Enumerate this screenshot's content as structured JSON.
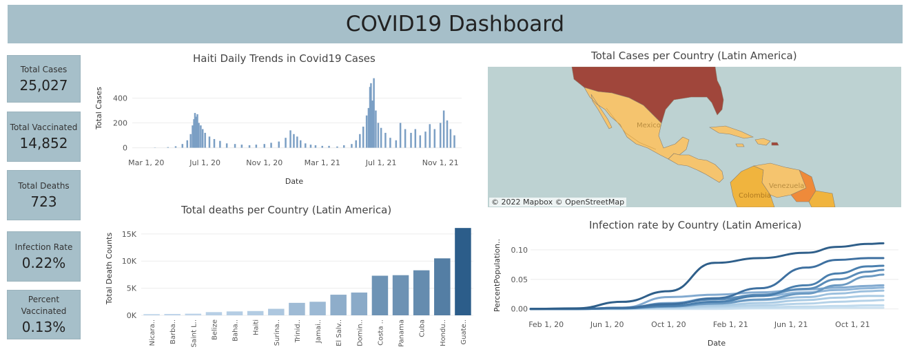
{
  "header": {
    "title": "COVID19 Dashboard"
  },
  "kpis": [
    {
      "label": "Total Cases",
      "value": "25,027"
    },
    {
      "label": "Total Vaccinated",
      "value": "14,852"
    },
    {
      "label": "Total Deaths",
      "value": "723"
    },
    {
      "label": "Infection Rate",
      "value": "0.22%"
    },
    {
      "label_line1": "Percent",
      "label_line2": "Vaccinated",
      "value": "0.13%"
    }
  ],
  "map": {
    "title": "Total Cases per Country (Latin America)",
    "credit": "© 2022 Mapbox © OpenStreetMap",
    "labels": {
      "mexico": "Mexico",
      "colombia": "Colombia",
      "venezuela": "Venezuela"
    },
    "colors": {
      "water": "#bdd2d2",
      "usa": "#a0463b",
      "mexico": "#f5c46e",
      "central": "#f5c46e",
      "colombia": "#f0b43e",
      "venezuela": "#f5c46e",
      "guyana": "#ef8a3a"
    }
  },
  "chart_data": [
    {
      "type": "bar",
      "title": "Haiti Daily Trends in Covid19 Cases",
      "xlabel": "Date",
      "ylabel": "Total Cases",
      "x_ticks": [
        "Mar 1, 20",
        "Jul 1, 20",
        "Nov 1, 20",
        "Mar 1, 21",
        "Jul 1, 21",
        "Nov 1, 21"
      ],
      "y_ticks": [
        0,
        200,
        400
      ],
      "ylim": [
        -30,
        580
      ],
      "color": "#7b9fc4",
      "grid": true,
      "x": [
        "2020-03-19",
        "2020-04-15",
        "2020-05-01",
        "2020-05-15",
        "2020-05-25",
        "2020-06-01",
        "2020-06-05",
        "2020-06-08",
        "2020-06-10",
        "2020-06-12",
        "2020-06-15",
        "2020-06-18",
        "2020-06-22",
        "2020-06-26",
        "2020-07-01",
        "2020-07-10",
        "2020-07-20",
        "2020-08-01",
        "2020-08-15",
        "2020-09-01",
        "2020-09-15",
        "2020-10-01",
        "2020-10-15",
        "2020-11-01",
        "2020-11-15",
        "2020-12-01",
        "2020-12-15",
        "2020-12-25",
        "2021-01-01",
        "2021-01-08",
        "2021-01-15",
        "2021-01-25",
        "2021-02-05",
        "2021-02-15",
        "2021-03-01",
        "2021-03-15",
        "2021-04-01",
        "2021-04-15",
        "2021-05-01",
        "2021-05-10",
        "2021-05-18",
        "2021-05-25",
        "2021-06-01",
        "2021-06-05",
        "2021-06-08",
        "2021-06-10",
        "2021-06-13",
        "2021-06-16",
        "2021-06-20",
        "2021-06-25",
        "2021-07-01",
        "2021-07-10",
        "2021-07-20",
        "2021-08-01",
        "2021-08-10",
        "2021-08-20",
        "2021-09-01",
        "2021-09-10",
        "2021-09-20",
        "2021-10-01",
        "2021-10-10",
        "2021-10-20",
        "2021-11-01",
        "2021-11-08",
        "2021-11-15",
        "2021-11-22",
        "2021-11-30"
      ],
      "values": [
        2,
        5,
        12,
        30,
        60,
        110,
        180,
        230,
        280,
        250,
        270,
        200,
        180,
        150,
        120,
        90,
        70,
        55,
        35,
        30,
        25,
        20,
        25,
        30,
        40,
        50,
        80,
        140,
        110,
        90,
        60,
        35,
        25,
        20,
        15,
        15,
        10,
        20,
        30,
        60,
        110,
        170,
        260,
        320,
        490,
        520,
        380,
        560,
        300,
        200,
        160,
        120,
        80,
        60,
        200,
        150,
        120,
        150,
        100,
        130,
        190,
        150,
        200,
        300,
        220,
        150,
        100
      ]
    },
    {
      "type": "bar",
      "title": "Total deaths per Country (Latin America)",
      "xlabel": "",
      "ylabel": "Total Death Counts",
      "categories": [
        "Nicara..",
        "Barba..",
        "Saint L..",
        "Belize",
        "Baha..",
        "Haiti",
        "Surina..",
        "Trinid..",
        "Jamai..",
        "El Salv..",
        "Domin..",
        "Costa ..",
        "Panama",
        "Cuba",
        "Hondu..",
        "Guate.."
      ],
      "values": [
        220,
        250,
        300,
        590,
        720,
        790,
        1200,
        2300,
        2500,
        3800,
        4200,
        7300,
        7400,
        8300,
        10500,
        16100
      ],
      "y_ticks": [
        "0K",
        "5K",
        "10K",
        "15K"
      ],
      "ylim": [
        0,
        16500
      ],
      "color_low": "#c6dbef",
      "color_high": "#2c5d8a"
    },
    {
      "type": "line",
      "title": "Infection rate by Country (Latin America)",
      "xlabel": "Date",
      "ylabel": "PercentPopulation..",
      "x_ticks": [
        "Feb 1, 20",
        "Jun 1, 20",
        "Oct 1, 20",
        "Feb 1, 21",
        "Jun 1, 21",
        "Oct 1, 21"
      ],
      "y_ticks": [
        "0.00",
        "0.05",
        "0.10"
      ],
      "ylim": [
        -0.005,
        0.115
      ],
      "x": [
        "2020-01-01",
        "2020-04-01",
        "2020-07-01",
        "2020-10-01",
        "2021-01-01",
        "2021-04-01",
        "2021-07-01",
        "2021-09-01",
        "2021-11-01",
        "2021-12-01"
      ],
      "series": [
        {
          "values": [
            0,
            0.001,
            0.012,
            0.03,
            0.078,
            0.086,
            0.095,
            0.105,
            0.11,
            0.111
          ],
          "color": "#2f5f8a"
        },
        {
          "values": [
            0,
            0,
            0.002,
            0.008,
            0.018,
            0.035,
            0.07,
            0.083,
            0.086,
            0.086
          ],
          "color": "#3e70a0"
        },
        {
          "values": [
            0,
            0,
            0.001,
            0.005,
            0.012,
            0.022,
            0.04,
            0.06,
            0.072,
            0.073
          ],
          "color": "#4a7fae"
        },
        {
          "values": [
            0,
            0,
            0.002,
            0.009,
            0.016,
            0.024,
            0.034,
            0.05,
            0.063,
            0.066
          ],
          "color": "#5b8cb8"
        },
        {
          "values": [
            0,
            0,
            0.001,
            0.004,
            0.009,
            0.016,
            0.026,
            0.04,
            0.055,
            0.058
          ],
          "color": "#6a99c2"
        },
        {
          "values": [
            0,
            0,
            0.002,
            0.02,
            0.024,
            0.028,
            0.033,
            0.036,
            0.039,
            0.04
          ],
          "color": "#82aad0"
        },
        {
          "values": [
            0,
            0,
            0.001,
            0.01,
            0.018,
            0.022,
            0.028,
            0.032,
            0.035,
            0.036
          ],
          "color": "#8fb5d8"
        },
        {
          "values": [
            0,
            0,
            0.001,
            0.005,
            0.01,
            0.015,
            0.02,
            0.026,
            0.03,
            0.031
          ],
          "color": "#9cc0de"
        },
        {
          "values": [
            0,
            0,
            0.001,
            0.003,
            0.006,
            0.01,
            0.015,
            0.019,
            0.022,
            0.022
          ],
          "color": "#aacbe4"
        },
        {
          "values": [
            0,
            0,
            0.0,
            0.002,
            0.004,
            0.006,
            0.009,
            0.012,
            0.014,
            0.015
          ],
          "color": "#b5d2e8"
        },
        {
          "values": [
            0,
            0,
            0.0,
            0.001,
            0.002,
            0.003,
            0.004,
            0.005,
            0.006,
            0.006
          ],
          "color": "#c2dbed"
        },
        {
          "values": [
            0,
            0,
            0.0,
            0.0,
            0.0,
            0.001,
            0.001,
            0.002,
            0.002,
            0.002
          ],
          "color": "#cde2f1"
        }
      ]
    }
  ]
}
